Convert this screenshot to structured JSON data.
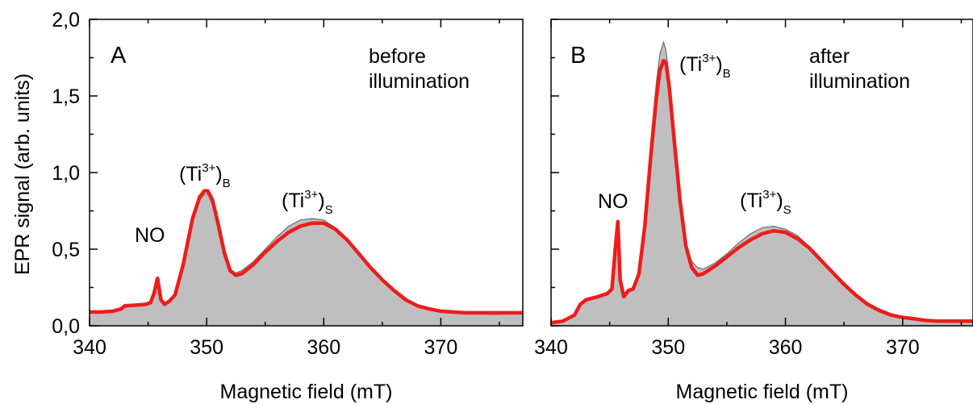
{
  "chart_data": [
    {
      "type": "area",
      "panel_label": "A",
      "condition_line1": "before",
      "condition_line2": "illumination",
      "xlabel": "Magnetic field (mT)",
      "ylabel": "EPR signal (arb. units)",
      "xlim": [
        340,
        377
      ],
      "ylim": [
        0,
        2.0
      ],
      "x_ticks": [
        "340",
        "350",
        "360",
        "370"
      ],
      "y_ticks": [
        "0,0",
        "0,5",
        "1,0",
        "1,5",
        "2,0"
      ],
      "annotations": [
        {
          "base": "NO",
          "sup": "",
          "sub": "",
          "x": 345.8,
          "y": 0.52
        },
        {
          "base": "(Ti",
          "sup": "3+",
          "sub": "B",
          "x": 350.8,
          "y": 1.0
        },
        {
          "base": "(Ti",
          "sup": "3+",
          "sub": "S",
          "x": 359.8,
          "y": 0.87
        }
      ],
      "series": [
        {
          "name": "",
          "color": "#bfbfbf",
          "edge_color": "#6e6e6e",
          "x": [
            340,
            341,
            342,
            342.7,
            343,
            344,
            344.8,
            345.2,
            345.5,
            345.8,
            346.1,
            346.4,
            346.8,
            347.3,
            348,
            348.8,
            349.4,
            349.8,
            350.1,
            350.5,
            351,
            351.5,
            352,
            352.5,
            353,
            354,
            355,
            356,
            357,
            358,
            359,
            360,
            361,
            362,
            363,
            364,
            365,
            366,
            367,
            368,
            369,
            370,
            371,
            372,
            373,
            374,
            375,
            376,
            377
          ],
          "y": [
            0.09,
            0.09,
            0.095,
            0.11,
            0.13,
            0.135,
            0.14,
            0.15,
            0.2,
            0.29,
            0.17,
            0.14,
            0.16,
            0.2,
            0.38,
            0.68,
            0.82,
            0.86,
            0.86,
            0.79,
            0.62,
            0.45,
            0.36,
            0.345,
            0.36,
            0.42,
            0.5,
            0.58,
            0.65,
            0.69,
            0.7,
            0.69,
            0.64,
            0.57,
            0.48,
            0.39,
            0.3,
            0.23,
            0.17,
            0.13,
            0.11,
            0.09,
            0.085,
            0.08,
            0.08,
            0.075,
            0.075,
            0.08,
            0.08
          ]
        },
        {
          "name": "",
          "color": "#ee1c1c",
          "x": [
            340,
            341,
            342,
            342.7,
            343,
            344,
            344.8,
            345.2,
            345.5,
            345.8,
            346.1,
            346.4,
            346.8,
            347.3,
            348,
            348.8,
            349.4,
            349.8,
            350.1,
            350.5,
            351,
            351.5,
            352,
            352.5,
            353,
            354,
            355,
            356,
            357,
            358,
            359,
            360,
            361,
            362,
            363,
            364,
            365,
            366,
            367,
            368,
            369,
            370,
            371,
            372,
            373,
            374,
            375,
            376,
            377
          ],
          "y": [
            0.09,
            0.09,
            0.095,
            0.11,
            0.13,
            0.135,
            0.14,
            0.15,
            0.21,
            0.31,
            0.17,
            0.14,
            0.16,
            0.2,
            0.4,
            0.7,
            0.84,
            0.88,
            0.88,
            0.82,
            0.66,
            0.48,
            0.36,
            0.33,
            0.34,
            0.4,
            0.48,
            0.55,
            0.61,
            0.65,
            0.67,
            0.67,
            0.63,
            0.56,
            0.47,
            0.38,
            0.3,
            0.23,
            0.17,
            0.13,
            0.11,
            0.095,
            0.09,
            0.085,
            0.085,
            0.085,
            0.085,
            0.085,
            0.085
          ]
        }
      ]
    },
    {
      "type": "area",
      "panel_label": "B",
      "condition_line1": "after",
      "condition_line2": "illumination",
      "xlabel": "Magnetic field (mT)",
      "ylabel": "",
      "xlim": [
        340,
        376
      ],
      "ylim": [
        0,
        2.0
      ],
      "x_ticks": [
        "340",
        "350",
        "360",
        "370"
      ],
      "y_ticks": [],
      "annotations": [
        {
          "base": "NO",
          "sup": "",
          "sub": "",
          "x": 345.0,
          "y": 0.8
        },
        {
          "base": "(Ti",
          "sup": "3+",
          "sub": "B",
          "x": 353.3,
          "y": 1.68
        },
        {
          "base": "(Ti",
          "sup": "3+",
          "sub": "S",
          "x": 358.7,
          "y": 0.8
        }
      ],
      "series": [
        {
          "name": "",
          "color": "#bfbfbf",
          "edge_color": "#6e6e6e",
          "x": [
            340,
            341,
            342,
            342.5,
            343,
            344,
            344.8,
            345.2,
            345.5,
            345.7,
            345.9,
            346.2,
            346.6,
            347,
            347.5,
            348,
            348.5,
            349,
            349.3,
            349.6,
            349.8,
            350.1,
            350.5,
            351,
            351.5,
            352,
            352.5,
            353,
            354,
            355,
            356,
            357,
            358,
            359,
            360,
            361,
            362,
            363,
            364,
            365,
            366,
            367,
            368,
            369,
            370,
            371,
            372,
            373,
            374,
            375,
            376
          ],
          "y": [
            0.02,
            0.03,
            0.07,
            0.14,
            0.17,
            0.19,
            0.21,
            0.24,
            0.5,
            0.68,
            0.3,
            0.19,
            0.23,
            0.24,
            0.35,
            0.7,
            1.2,
            1.6,
            1.78,
            1.85,
            1.8,
            1.6,
            1.25,
            0.85,
            0.55,
            0.42,
            0.38,
            0.37,
            0.41,
            0.47,
            0.54,
            0.6,
            0.64,
            0.65,
            0.63,
            0.59,
            0.52,
            0.44,
            0.36,
            0.28,
            0.21,
            0.15,
            0.11,
            0.08,
            0.06,
            0.05,
            0.04,
            0.03,
            0.03,
            0.025,
            0.025
          ]
        },
        {
          "name": "",
          "color": "#ee1c1c",
          "x": [
            340,
            341,
            342,
            342.5,
            343,
            344,
            344.8,
            345.2,
            345.5,
            345.7,
            345.9,
            346.2,
            346.6,
            347,
            347.5,
            348,
            348.5,
            349,
            349.3,
            349.6,
            349.8,
            350.1,
            350.5,
            351,
            351.5,
            352,
            352.5,
            353,
            354,
            355,
            356,
            357,
            358,
            359,
            360,
            361,
            362,
            363,
            364,
            365,
            366,
            367,
            368,
            369,
            370,
            371,
            372,
            373,
            374,
            375,
            376
          ],
          "y": [
            0.02,
            0.03,
            0.07,
            0.14,
            0.17,
            0.19,
            0.21,
            0.24,
            0.52,
            0.68,
            0.3,
            0.19,
            0.23,
            0.24,
            0.34,
            0.65,
            1.1,
            1.5,
            1.67,
            1.73,
            1.72,
            1.55,
            1.22,
            0.82,
            0.52,
            0.38,
            0.33,
            0.34,
            0.39,
            0.45,
            0.51,
            0.56,
            0.6,
            0.62,
            0.61,
            0.57,
            0.51,
            0.43,
            0.35,
            0.27,
            0.2,
            0.14,
            0.1,
            0.07,
            0.055,
            0.045,
            0.035,
            0.03,
            0.03,
            0.03,
            0.03
          ]
        }
      ]
    }
  ]
}
